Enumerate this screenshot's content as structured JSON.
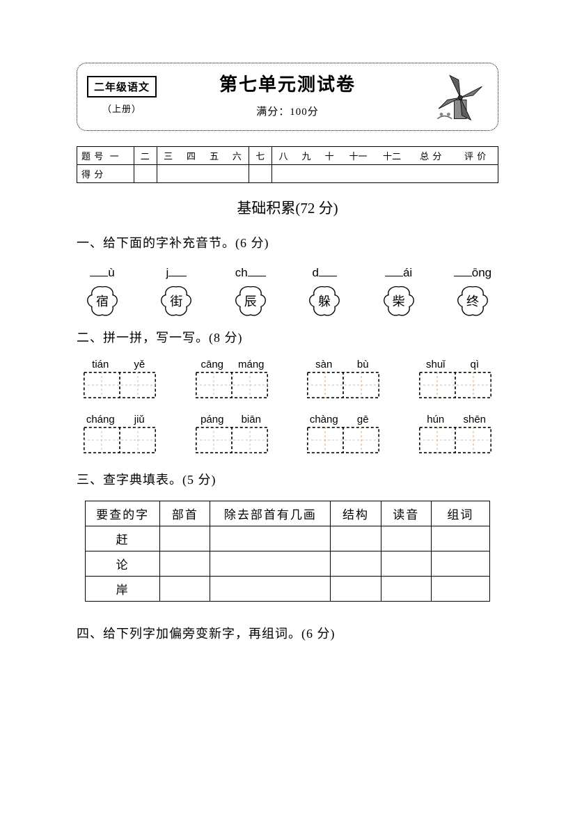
{
  "header": {
    "class_label": "二年级语文",
    "class_sub": "（上册）",
    "title": "第七单元测试卷",
    "full_score": "满分：100分"
  },
  "score_table": {
    "row1_label": "题 号",
    "row2_label": "得 分",
    "cols": [
      "一",
      "二",
      "三",
      "四",
      "五",
      "六",
      "七",
      "八",
      "九",
      "十",
      "十一",
      "十二",
      "总 分",
      "评 价"
    ]
  },
  "section_title": "基础积累(72 分)",
  "q1": {
    "heading": "一、给下面的字补充音节。(6 分)",
    "items": [
      {
        "pinyin_prefix": "",
        "pinyin_suffix": "ù",
        "char": "宿"
      },
      {
        "pinyin_prefix": "j",
        "pinyin_suffix": "",
        "char": "街"
      },
      {
        "pinyin_prefix": "ch",
        "pinyin_suffix": "",
        "char": "辰"
      },
      {
        "pinyin_prefix": "d",
        "pinyin_suffix": "",
        "char": "躲"
      },
      {
        "pinyin_prefix": "",
        "pinyin_suffix": "ái",
        "char": "柴"
      },
      {
        "pinyin_prefix": "",
        "pinyin_suffix": "ōng",
        "char": "终"
      }
    ]
  },
  "q2": {
    "heading": "二、拼一拼，写一写。(8 分)",
    "items": [
      {
        "p1": "tián",
        "p2": "yě"
      },
      {
        "p1": "cāng",
        "p2": "máng"
      },
      {
        "p1": "sàn",
        "p2": "bù"
      },
      {
        "p1": "shuǐ",
        "p2": "qì"
      },
      {
        "p1": "cháng",
        "p2": "jiǔ"
      },
      {
        "p1": "páng",
        "p2": "biān"
      },
      {
        "p1": "chàng",
        "p2": "gē"
      },
      {
        "p1": "hún",
        "p2": "shēn"
      }
    ]
  },
  "q3": {
    "heading": "三、查字典填表。(5 分)",
    "cols": [
      "要查的字",
      "部首",
      "除去部首有几画",
      "结构",
      "读音",
      "组词"
    ],
    "rows": [
      "赶",
      "论",
      "岸"
    ]
  },
  "q4": {
    "heading": "四、给下列字加偏旁变新字，再组词。(6 分)"
  },
  "colors": {
    "ink": "#000000",
    "guide": "#c0c0c0",
    "guide_orange": "#e6a06a"
  }
}
